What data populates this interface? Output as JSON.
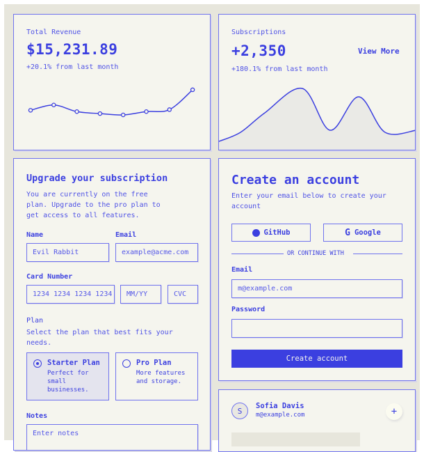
{
  "revenue": {
    "label": "Total Revenue",
    "value": "$15,231.89",
    "change": "+20.1% from last month"
  },
  "subscriptions": {
    "label": "Subscriptions",
    "value": "+2,350",
    "change": "+180.1% from last month",
    "link": "View More"
  },
  "chart_data": [
    {
      "type": "line",
      "values": [
        7,
        15,
        5,
        2,
        0,
        5,
        8,
        38
      ],
      "markers": true
    },
    {
      "type": "area",
      "values": [
        14,
        27,
        55,
        90,
        30,
        78,
        27,
        30
      ]
    }
  ],
  "upgrade": {
    "title": "Upgrade your subscription",
    "description": "You are currently on the free plan. Upgrade to the pro plan to get access to all features.",
    "name_label": "Name",
    "name_value": "Evil Rabbit",
    "email_label": "Email",
    "email_placeholder": "example@acme.com",
    "card_label": "Card Number",
    "card_placeholder": "1234 1234 1234 1234",
    "expiry_placeholder": "MM/YY",
    "cvc_placeholder": "CVC",
    "plan_label": "Plan",
    "plan_description": "Select the plan that best fits your needs.",
    "plans": [
      {
        "name": "Starter Plan",
        "description": "Perfect for small businesses.",
        "selected": true
      },
      {
        "name": "Pro Plan",
        "description": "More features and storage.",
        "selected": false
      }
    ],
    "notes_label": "Notes",
    "notes_placeholder": "Enter notes"
  },
  "create": {
    "title": "Create an account",
    "description": "Enter your email below to create your account",
    "github": "GitHub",
    "google": "Google",
    "divider": "OR CONTINUE WITH",
    "email_label": "Email",
    "email_placeholder": "m@example.com",
    "password_label": "Password",
    "submit": "Create account"
  },
  "user": {
    "initial": "S",
    "name": "Sofia Davis",
    "email": "m@example.com",
    "add": "+"
  },
  "colors": {
    "accent": "#3b3fe0",
    "background": "#e7e6dc",
    "card": "#f5f5ee"
  }
}
